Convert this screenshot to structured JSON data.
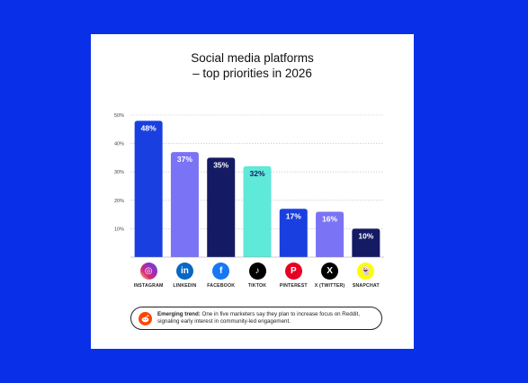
{
  "chart_data": {
    "type": "bar",
    "title_lines": [
      "Social media platforms",
      "– top priorities in 2026"
    ],
    "categories": [
      "INSTAGRAM",
      "LINKEDIN",
      "FACEBOOK",
      "TIKTOK",
      "PINTEREST",
      "X (TWITTER)",
      "SNAPCHAT"
    ],
    "values": [
      48,
      37,
      35,
      32,
      17,
      16,
      10
    ],
    "value_labels": [
      "48%",
      "37%",
      "35%",
      "32%",
      "17%",
      "16%",
      "10%"
    ],
    "bar_colors": [
      "#1a3fe0",
      "#7b73f5",
      "#141a63",
      "#5ee9d8",
      "#1a3fe0",
      "#7b73f5",
      "#141a63"
    ],
    "label_colors": [
      "#ffffff",
      "#ffffff",
      "#ffffff",
      "#141a63",
      "#ffffff",
      "#ffffff",
      "#ffffff"
    ],
    "ylim": [
      0,
      50
    ],
    "yticks": [
      10,
      20,
      30,
      40,
      50
    ],
    "ytick_labels": [
      "10%",
      "20%",
      "30%",
      "40%",
      "50%"
    ],
    "grid": "dotted-horizontal",
    "xlabel": "",
    "ylabel": ""
  },
  "icons": [
    {
      "name": "instagram-icon",
      "glyph": "◎",
      "color": "#d62976"
    },
    {
      "name": "linkedin-icon",
      "glyph": "in",
      "color": "#0a66c2"
    },
    {
      "name": "facebook-icon",
      "glyph": "f",
      "color": "#1877f2"
    },
    {
      "name": "tiktok-icon",
      "glyph": "♪",
      "color": "#000000"
    },
    {
      "name": "pinterest-icon",
      "glyph": "P",
      "color": "#e60023"
    },
    {
      "name": "x-icon",
      "glyph": "X",
      "color": "#000000"
    },
    {
      "name": "snapchat-icon",
      "glyph": "👻",
      "color": "#fffc00"
    }
  ],
  "trend": {
    "label": "Emerging trend:",
    "text": " One in five marketers say they plan to increase focus on Reddit, signaling early interest in community-led engagement."
  },
  "colors": {
    "background": "#0a2fe8",
    "card": "#ffffff",
    "reddit": "#ff4500"
  }
}
